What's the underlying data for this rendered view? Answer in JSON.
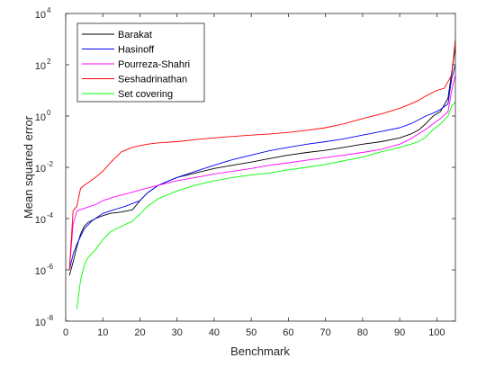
{
  "chart_data": {
    "type": "line",
    "title": "",
    "xlabel": "Benchmark",
    "ylabel": "Mean squared error",
    "xlim": [
      0,
      105
    ],
    "ylim": [
      1e-08,
      10000
    ],
    "yscale": "log",
    "xticks": [
      0,
      10,
      20,
      30,
      40,
      50,
      60,
      70,
      80,
      90,
      100
    ],
    "xtick_labels": [
      "0",
      "10",
      "20",
      "30",
      "40",
      "50",
      "60",
      "70",
      "80",
      "90",
      "100"
    ],
    "yticks": [
      1e-08,
      1e-06,
      0.0001,
      0.01,
      1,
      100,
      10000
    ],
    "ytick_labels": [
      {
        "base": "10",
        "exp": "-8"
      },
      {
        "base": "10",
        "exp": "-6"
      },
      {
        "base": "10",
        "exp": "-4"
      },
      {
        "base": "10",
        "exp": "-2"
      },
      {
        "base": "10",
        "exp": "0"
      },
      {
        "base": "10",
        "exp": "2"
      },
      {
        "base": "10",
        "exp": "4"
      }
    ],
    "grid": false,
    "legend_position": "top-left",
    "series": [
      {
        "name": "Barakat",
        "color": "#000000",
        "x": [
          1,
          2,
          3,
          4,
          5,
          6,
          8,
          10,
          12,
          15,
          18,
          20,
          22,
          25,
          30,
          35,
          40,
          45,
          50,
          55,
          60,
          65,
          70,
          75,
          80,
          85,
          90,
          93,
          95,
          97,
          99,
          101,
          103,
          104,
          105
        ],
        "y": [
          6e-07,
          2e-06,
          8e-06,
          2.5e-05,
          5e-05,
          7e-05,
          0.0001,
          0.00013,
          0.00016,
          0.00018,
          0.00022,
          0.0005,
          0.001,
          0.002,
          0.004,
          0.006,
          0.009,
          0.012,
          0.016,
          0.022,
          0.03,
          0.038,
          0.046,
          0.06,
          0.08,
          0.1,
          0.14,
          0.2,
          0.28,
          0.5,
          1,
          1.5,
          5,
          50,
          500
        ]
      },
      {
        "name": "Hasinoff",
        "color": "#0000ff",
        "x": [
          1,
          2,
          3,
          4,
          5,
          7,
          10,
          13,
          16,
          20,
          22,
          25,
          30,
          35,
          40,
          45,
          50,
          55,
          60,
          65,
          70,
          75,
          80,
          85,
          90,
          93,
          95,
          97,
          99,
          101,
          103,
          104,
          105
        ],
        "y": [
          1e-06,
          4e-06,
          1e-05,
          2e-05,
          4e-05,
          8e-05,
          0.00016,
          0.00022,
          0.0003,
          0.0005,
          0.001,
          0.002,
          0.004,
          0.007,
          0.012,
          0.02,
          0.03,
          0.045,
          0.06,
          0.08,
          0.1,
          0.13,
          0.18,
          0.25,
          0.35,
          0.5,
          0.7,
          1,
          1.3,
          1.8,
          3,
          30,
          100
        ]
      },
      {
        "name": "Pourreza-Shahri",
        "color": "#ff00ff",
        "x": [
          1,
          2,
          3,
          5,
          8,
          10,
          13,
          16,
          20,
          25,
          30,
          35,
          40,
          45,
          50,
          55,
          60,
          65,
          70,
          75,
          80,
          85,
          90,
          93,
          95,
          97,
          99,
          101,
          103,
          104,
          105
        ],
        "y": [
          1e-06,
          6e-05,
          0.0002,
          0.00025,
          0.00035,
          0.0005,
          0.0007,
          0.0009,
          0.0013,
          0.002,
          0.003,
          0.004,
          0.0055,
          0.007,
          0.009,
          0.012,
          0.015,
          0.019,
          0.024,
          0.03,
          0.038,
          0.05,
          0.08,
          0.13,
          0.2,
          0.3,
          0.5,
          0.8,
          1.5,
          10,
          40
        ]
      },
      {
        "name": "Seshadrinathan",
        "color": "#ff0000",
        "x": [
          1,
          2,
          3,
          4,
          5,
          6,
          8,
          10,
          12,
          15,
          18,
          20,
          22,
          25,
          30,
          35,
          40,
          45,
          50,
          55,
          60,
          65,
          70,
          75,
          80,
          85,
          90,
          93,
          95,
          97,
          100,
          102,
          104,
          105
        ],
        "y": [
          1e-06,
          0.0002,
          0.0003,
          0.0015,
          0.002,
          0.0025,
          0.004,
          0.007,
          0.015,
          0.04,
          0.06,
          0.07,
          0.08,
          0.09,
          0.1,
          0.12,
          0.14,
          0.16,
          0.18,
          0.2,
          0.23,
          0.28,
          0.35,
          0.5,
          0.8,
          1.2,
          2,
          3,
          4,
          6,
          10,
          12,
          40,
          1000
        ]
      },
      {
        "name": "Set covering",
        "color": "#00ff00",
        "x": [
          3,
          4,
          5,
          6,
          8,
          10,
          12,
          15,
          18,
          20,
          22,
          25,
          30,
          35,
          40,
          45,
          50,
          55,
          60,
          65,
          70,
          75,
          80,
          85,
          90,
          93,
          95,
          97,
          99,
          101,
          103,
          104,
          105
        ],
        "y": [
          3e-08,
          4e-07,
          1.5e-06,
          3e-06,
          6e-06,
          1.5e-05,
          3e-05,
          5e-05,
          8e-05,
          0.00015,
          0.0003,
          0.0006,
          0.0012,
          0.002,
          0.003,
          0.004,
          0.005,
          0.006,
          0.008,
          0.01,
          0.013,
          0.018,
          0.025,
          0.04,
          0.06,
          0.08,
          0.1,
          0.15,
          0.3,
          0.5,
          1,
          2.5,
          3.5
        ]
      }
    ]
  }
}
